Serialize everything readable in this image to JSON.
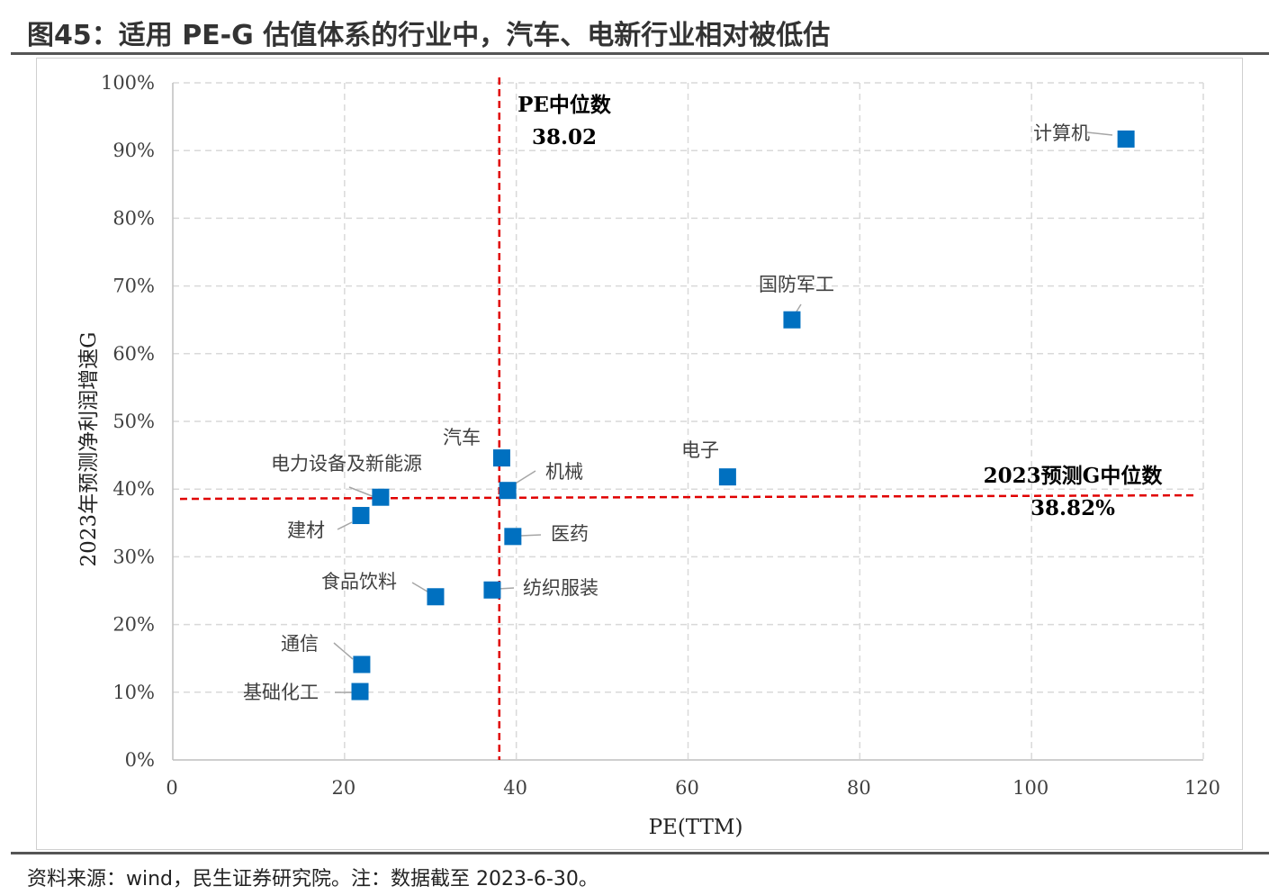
{
  "page": {
    "title": "图45：适用 PE-G 估值体系的行业中，汽车、电新行业相对被低估",
    "source": "资料来源：wind，民生证券研究院。注：数据截至 2023-6-30。"
  },
  "colors": {
    "point": "#0070c0",
    "median_line": "#e00000",
    "grid": "#d9d9d9",
    "axis": "#bfbfbf"
  },
  "chart_data": {
    "type": "scatter",
    "xlabel": "PE(TTM)",
    "ylabel": "2023年预测净利润增速G",
    "xlim": [
      0,
      120
    ],
    "ylim": [
      0,
      1.0
    ],
    "x_ticks": [
      "0",
      "20",
      "40",
      "60",
      "80",
      "100",
      "120"
    ],
    "y_ticks": [
      "0%",
      "10%",
      "20%",
      "30%",
      "40%",
      "50%",
      "60%",
      "70%",
      "80%",
      "90%",
      "100%"
    ],
    "grid": true,
    "points": [
      {
        "name": "计算机",
        "x": 111.0,
        "y": 0.917
      },
      {
        "name": "国防军工",
        "x": 72.1,
        "y": 0.65
      },
      {
        "name": "电子",
        "x": 64.6,
        "y": 0.418
      },
      {
        "name": "汽车",
        "x": 38.3,
        "y": 0.446
      },
      {
        "name": "机械",
        "x": 39.0,
        "y": 0.398
      },
      {
        "name": "电力设备及新能源",
        "x": 24.2,
        "y": 0.388
      },
      {
        "name": "医药",
        "x": 39.6,
        "y": 0.33
      },
      {
        "name": "建材",
        "x": 21.9,
        "y": 0.361
      },
      {
        "name": "纺织服装",
        "x": 37.2,
        "y": 0.251
      },
      {
        "name": "食品饮料",
        "x": 30.6,
        "y": 0.241
      },
      {
        "name": "通信",
        "x": 22.0,
        "y": 0.141
      },
      {
        "name": "基础化工",
        "x": 21.8,
        "y": 0.101
      }
    ],
    "median_pe": {
      "value": 38.02,
      "label_line1": "PE中位数",
      "label_line2": "38.02"
    },
    "median_g": {
      "value": 0.3882,
      "label_line1": "2023预测G中位数",
      "label_line2": "38.82%"
    }
  }
}
